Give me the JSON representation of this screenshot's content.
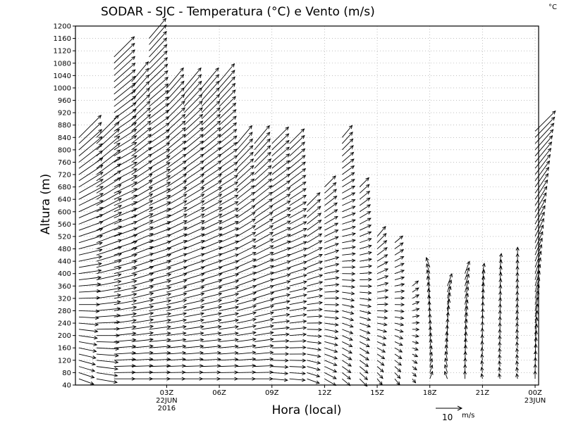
{
  "chart_data": {
    "type": "vector-field",
    "title": "SODAR  -  SJC  -  Temperatura (°C) e Vento (m/s)",
    "corner_unit": "°C",
    "xlabel": "Hora (local)",
    "ylabel": "Altura (m)",
    "ylim": [
      40,
      1200
    ],
    "y_ticks": [
      40,
      80,
      120,
      160,
      200,
      240,
      280,
      320,
      360,
      400,
      440,
      480,
      520,
      560,
      600,
      640,
      680,
      720,
      760,
      800,
      840,
      880,
      920,
      960,
      1000,
      1040,
      1080,
      1120,
      1160,
      1200
    ],
    "x_range_hours": [
      -2.2,
      24.2
    ],
    "x_ticks": [
      {
        "hour": 3,
        "label": "03Z",
        "sub1": "22JUN",
        "sub2": "2016"
      },
      {
        "hour": 6,
        "label": "06Z",
        "sub1": "",
        "sub2": ""
      },
      {
        "hour": 9,
        "label": "09Z",
        "sub1": "",
        "sub2": ""
      },
      {
        "hour": 12,
        "label": "12Z",
        "sub1": "",
        "sub2": ""
      },
      {
        "hour": 15,
        "label": "15Z",
        "sub1": "",
        "sub2": ""
      },
      {
        "hour": 18,
        "label": "18Z",
        "sub1": "",
        "sub2": ""
      },
      {
        "hour": 21,
        "label": "21Z",
        "sub1": "",
        "sub2": ""
      },
      {
        "hour": 24,
        "label": "00Z",
        "sub1": "23JUN",
        "sub2": ""
      }
    ],
    "grid": true,
    "reference_vector": {
      "speed": 10,
      "label": "10",
      "unit": "m/s"
    },
    "profiles": [
      {
        "hour": -2.0,
        "top": 840,
        "top_speed": 12,
        "bottom_speed": 6,
        "dir_top": 225,
        "dir_bottom": 290
      },
      {
        "hour": -1.0,
        "top": 840,
        "top_speed": 12,
        "bottom_speed": 8,
        "dir_top": 225,
        "dir_bottom": 280
      },
      {
        "hour": 0.0,
        "top": 1100,
        "top_speed": 11,
        "bottom_speed": 8,
        "dir_top": 225,
        "dir_bottom": 270
      },
      {
        "hour": 1.0,
        "top": 1020,
        "top_speed": 10,
        "bottom_speed": 8,
        "dir_top": 220,
        "dir_bottom": 270
      },
      {
        "hour": 2.0,
        "top": 1160,
        "top_speed": 10,
        "bottom_speed": 8,
        "dir_top": 220,
        "dir_bottom": 270
      },
      {
        "hour": 3.0,
        "top": 1000,
        "top_speed": 10,
        "bottom_speed": 7,
        "dir_top": 220,
        "dir_bottom": 270
      },
      {
        "hour": 4.0,
        "top": 1000,
        "top_speed": 10,
        "bottom_speed": 7,
        "dir_top": 220,
        "dir_bottom": 270
      },
      {
        "hour": 5.0,
        "top": 1000,
        "top_speed": 10,
        "bottom_speed": 7,
        "dir_top": 220,
        "dir_bottom": 270
      },
      {
        "hour": 6.0,
        "top": 1020,
        "top_speed": 9,
        "bottom_speed": 7,
        "dir_top": 220,
        "dir_bottom": 270
      },
      {
        "hour": 7.0,
        "top": 820,
        "top_speed": 9,
        "bottom_speed": 7,
        "dir_top": 220,
        "dir_bottom": 270
      },
      {
        "hour": 8.0,
        "top": 820,
        "top_speed": 9,
        "bottom_speed": 7,
        "dir_top": 220,
        "dir_bottom": 270
      },
      {
        "hour": 9.0,
        "top": 820,
        "top_speed": 9,
        "bottom_speed": 6,
        "dir_top": 225,
        "dir_bottom": 275
      },
      {
        "hour": 10.0,
        "top": 820,
        "top_speed": 8,
        "bottom_speed": 6,
        "dir_top": 225,
        "dir_bottom": 275
      },
      {
        "hour": 11.0,
        "top": 620,
        "top_speed": 7,
        "bottom_speed": 5,
        "dir_top": 225,
        "dir_bottom": 290
      },
      {
        "hour": 12.0,
        "top": 680,
        "top_speed": 6,
        "bottom_speed": 5,
        "dir_top": 225,
        "dir_bottom": 300
      },
      {
        "hour": 13.0,
        "top": 840,
        "top_speed": 6,
        "bottom_speed": 4,
        "dir_top": 220,
        "dir_bottom": 310
      },
      {
        "hour": 14.0,
        "top": 680,
        "top_speed": 5,
        "bottom_speed": 4,
        "dir_top": 225,
        "dir_bottom": 315
      },
      {
        "hour": 15.0,
        "top": 520,
        "top_speed": 5,
        "bottom_speed": 3,
        "dir_top": 220,
        "dir_bottom": 320
      },
      {
        "hour": 16.0,
        "top": 500,
        "top_speed": 4,
        "bottom_speed": 3,
        "dir_top": 230,
        "dir_bottom": 320
      },
      {
        "hour": 17.0,
        "top": 360,
        "top_speed": 3,
        "bottom_speed": 2,
        "dir_top": 230,
        "dir_bottom": 320
      },
      {
        "hour": 18.0,
        "top": 420,
        "top_speed": 4,
        "bottom_speed": 3,
        "dir_top": 160,
        "dir_bottom": 200
      },
      {
        "hour": 19.0,
        "top": 360,
        "top_speed": 5,
        "bottom_speed": 3,
        "dir_top": 200,
        "dir_bottom": 160
      },
      {
        "hour": 20.0,
        "top": 400,
        "top_speed": 5,
        "bottom_speed": 3,
        "dir_top": 200,
        "dir_bottom": 180
      },
      {
        "hour": 21.0,
        "top": 400,
        "top_speed": 4,
        "bottom_speed": 2,
        "dir_top": 190,
        "dir_bottom": 170
      },
      {
        "hour": 22.0,
        "top": 440,
        "top_speed": 3,
        "bottom_speed": 2,
        "dir_top": 190,
        "dir_bottom": 170
      },
      {
        "hour": 23.0,
        "top": 460,
        "top_speed": 3,
        "bottom_speed": 2,
        "dir_top": 180,
        "dir_bottom": 170
      },
      {
        "hour": 24.0,
        "top": 860,
        "top_speed": 11,
        "bottom_speed": 3,
        "dir_top": 225,
        "dir_bottom": 180
      }
    ]
  }
}
